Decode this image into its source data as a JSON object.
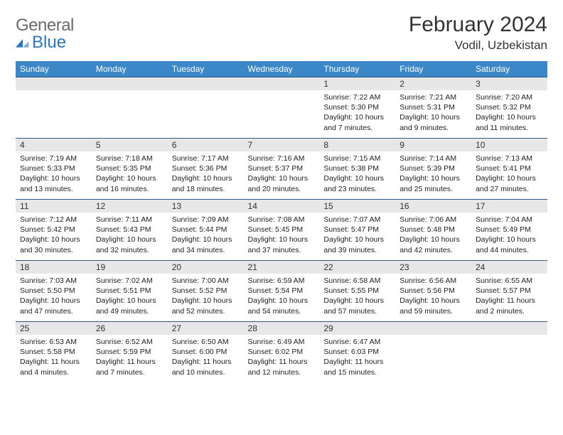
{
  "logo": {
    "text_gray": "General",
    "text_blue": "Blue",
    "icon_color": "#2a77bb"
  },
  "title": "February 2024",
  "location": "Vodil, Uzbekistan",
  "colors": {
    "header_bg": "#3b87c8",
    "header_text": "#ffffff",
    "daynum_bg": "#e7e7e7",
    "border": "#2d5a8a",
    "logo_gray": "#6b6b6b",
    "logo_blue": "#2a77bb"
  },
  "day_headers": [
    "Sunday",
    "Monday",
    "Tuesday",
    "Wednesday",
    "Thursday",
    "Friday",
    "Saturday"
  ],
  "weeks": [
    [
      null,
      null,
      null,
      null,
      {
        "n": "1",
        "sr": "7:22 AM",
        "ss": "5:30 PM",
        "dl": "10 hours and 7 minutes."
      },
      {
        "n": "2",
        "sr": "7:21 AM",
        "ss": "5:31 PM",
        "dl": "10 hours and 9 minutes."
      },
      {
        "n": "3",
        "sr": "7:20 AM",
        "ss": "5:32 PM",
        "dl": "10 hours and 11 minutes."
      }
    ],
    [
      {
        "n": "4",
        "sr": "7:19 AM",
        "ss": "5:33 PM",
        "dl": "10 hours and 13 minutes."
      },
      {
        "n": "5",
        "sr": "7:18 AM",
        "ss": "5:35 PM",
        "dl": "10 hours and 16 minutes."
      },
      {
        "n": "6",
        "sr": "7:17 AM",
        "ss": "5:36 PM",
        "dl": "10 hours and 18 minutes."
      },
      {
        "n": "7",
        "sr": "7:16 AM",
        "ss": "5:37 PM",
        "dl": "10 hours and 20 minutes."
      },
      {
        "n": "8",
        "sr": "7:15 AM",
        "ss": "5:38 PM",
        "dl": "10 hours and 23 minutes."
      },
      {
        "n": "9",
        "sr": "7:14 AM",
        "ss": "5:39 PM",
        "dl": "10 hours and 25 minutes."
      },
      {
        "n": "10",
        "sr": "7:13 AM",
        "ss": "5:41 PM",
        "dl": "10 hours and 27 minutes."
      }
    ],
    [
      {
        "n": "11",
        "sr": "7:12 AM",
        "ss": "5:42 PM",
        "dl": "10 hours and 30 minutes."
      },
      {
        "n": "12",
        "sr": "7:11 AM",
        "ss": "5:43 PM",
        "dl": "10 hours and 32 minutes."
      },
      {
        "n": "13",
        "sr": "7:09 AM",
        "ss": "5:44 PM",
        "dl": "10 hours and 34 minutes."
      },
      {
        "n": "14",
        "sr": "7:08 AM",
        "ss": "5:45 PM",
        "dl": "10 hours and 37 minutes."
      },
      {
        "n": "15",
        "sr": "7:07 AM",
        "ss": "5:47 PM",
        "dl": "10 hours and 39 minutes."
      },
      {
        "n": "16",
        "sr": "7:06 AM",
        "ss": "5:48 PM",
        "dl": "10 hours and 42 minutes."
      },
      {
        "n": "17",
        "sr": "7:04 AM",
        "ss": "5:49 PM",
        "dl": "10 hours and 44 minutes."
      }
    ],
    [
      {
        "n": "18",
        "sr": "7:03 AM",
        "ss": "5:50 PM",
        "dl": "10 hours and 47 minutes."
      },
      {
        "n": "19",
        "sr": "7:02 AM",
        "ss": "5:51 PM",
        "dl": "10 hours and 49 minutes."
      },
      {
        "n": "20",
        "sr": "7:00 AM",
        "ss": "5:52 PM",
        "dl": "10 hours and 52 minutes."
      },
      {
        "n": "21",
        "sr": "6:59 AM",
        "ss": "5:54 PM",
        "dl": "10 hours and 54 minutes."
      },
      {
        "n": "22",
        "sr": "6:58 AM",
        "ss": "5:55 PM",
        "dl": "10 hours and 57 minutes."
      },
      {
        "n": "23",
        "sr": "6:56 AM",
        "ss": "5:56 PM",
        "dl": "10 hours and 59 minutes."
      },
      {
        "n": "24",
        "sr": "6:55 AM",
        "ss": "5:57 PM",
        "dl": "11 hours and 2 minutes."
      }
    ],
    [
      {
        "n": "25",
        "sr": "6:53 AM",
        "ss": "5:58 PM",
        "dl": "11 hours and 4 minutes."
      },
      {
        "n": "26",
        "sr": "6:52 AM",
        "ss": "5:59 PM",
        "dl": "11 hours and 7 minutes."
      },
      {
        "n": "27",
        "sr": "6:50 AM",
        "ss": "6:00 PM",
        "dl": "11 hours and 10 minutes."
      },
      {
        "n": "28",
        "sr": "6:49 AM",
        "ss": "6:02 PM",
        "dl": "11 hours and 12 minutes."
      },
      {
        "n": "29",
        "sr": "6:47 AM",
        "ss": "6:03 PM",
        "dl": "11 hours and 15 minutes."
      },
      null,
      null
    ]
  ],
  "labels": {
    "sunrise": "Sunrise: ",
    "sunset": "Sunset: ",
    "daylight": "Daylight: "
  }
}
